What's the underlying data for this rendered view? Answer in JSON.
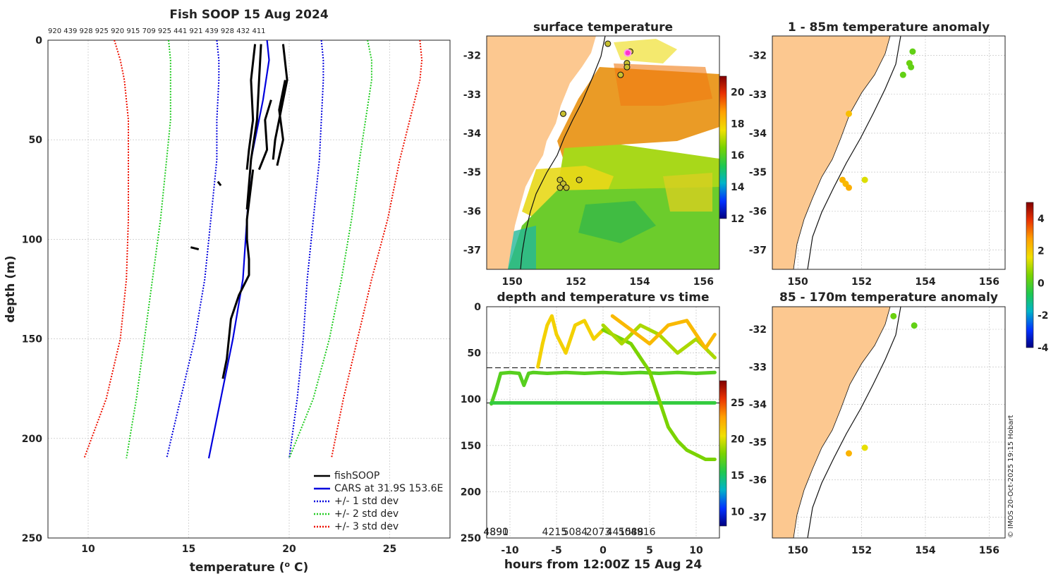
{
  "chart_data": [
    {
      "type": "line",
      "title": "Fish SOOP 15 Aug 2024",
      "xlabel": "temperature (",
      "xlabel_sup": "o",
      "xlabel_unit": " C)",
      "ylabel": "depth (m)",
      "xlim": [
        8,
        28
      ],
      "ylim": [
        250,
        0
      ],
      "xticks": [
        10,
        15,
        20,
        25
      ],
      "yticks": [
        0,
        50,
        100,
        150,
        200,
        250
      ],
      "top_labels": "920 439 928 925 920 915 709 925 441 921 439 928 432 411",
      "legend": [
        {
          "name": "fishSOOP",
          "color": "#000000",
          "dash": false
        },
        {
          "name": "CARS at 31.9S 153.6E",
          "color": "#0000dd",
          "dash": false
        },
        {
          "name": "+/- 1 std dev",
          "color": "#0000dd",
          "dash": true
        },
        {
          "name": "+/- 2 std dev",
          "color": "#22cc22",
          "dash": true
        },
        {
          "name": "+/- 3 std dev",
          "color": "#ee1100",
          "dash": true
        }
      ],
      "series": [
        {
          "name": "CARS",
          "depth": [
            0,
            10,
            30,
            60,
            90,
            120,
            150,
            175,
            210
          ],
          "temp": [
            18.9,
            19.0,
            18.7,
            18.1,
            17.9,
            17.7,
            17.2,
            16.7,
            16.0
          ]
        },
        {
          "name": "+1sd",
          "depth": [
            0,
            10,
            20,
            40,
            60,
            90,
            120,
            150,
            180,
            210
          ],
          "temp": [
            21.6,
            21.7,
            21.7,
            21.6,
            21.5,
            21.2,
            20.9,
            20.7,
            20.4,
            20.0
          ]
        },
        {
          "name": "-1sd",
          "depth": [
            0,
            10,
            20,
            40,
            60,
            90,
            120,
            150,
            180,
            210
          ],
          "temp": [
            16.4,
            16.5,
            16.5,
            16.4,
            16.4,
            16.1,
            15.8,
            15.3,
            14.6,
            13.9
          ]
        },
        {
          "name": "+2sd",
          "depth": [
            0,
            10,
            20,
            40,
            60,
            90,
            120,
            150,
            180,
            210
          ],
          "temp": [
            23.9,
            24.1,
            24.1,
            23.8,
            23.5,
            23.1,
            22.6,
            22.0,
            21.2,
            20.0
          ]
        },
        {
          "name": "-2sd",
          "depth": [
            0,
            10,
            20,
            40,
            60,
            90,
            120,
            150,
            180,
            210
          ],
          "temp": [
            14.0,
            14.1,
            14.1,
            14.1,
            13.9,
            13.6,
            13.2,
            12.8,
            12.4,
            11.9
          ]
        },
        {
          "name": "+3sd",
          "depth": [
            0,
            10,
            20,
            40,
            60,
            90,
            120,
            150,
            180,
            210
          ],
          "temp": [
            26.5,
            26.6,
            26.5,
            26.0,
            25.5,
            24.9,
            24.1,
            23.4,
            22.7,
            22.1
          ]
        },
        {
          "name": "-3sd",
          "depth": [
            0,
            10,
            20,
            40,
            60,
            90,
            120,
            150,
            180,
            210
          ],
          "temp": [
            11.3,
            11.6,
            11.8,
            12.0,
            12.0,
            12.0,
            11.9,
            11.6,
            10.9,
            9.8
          ]
        },
        {
          "name": "fishSOOP-1",
          "depth": [
            2,
            20,
            40,
            55,
            65
          ],
          "temp": [
            18.3,
            18.1,
            18.2,
            18.0,
            17.9
          ]
        },
        {
          "name": "fishSOOP-2",
          "depth": [
            2,
            20,
            40,
            60,
            85
          ],
          "temp": [
            18.6,
            18.5,
            18.4,
            18.1,
            17.9
          ]
        },
        {
          "name": "fishSOOP-3",
          "depth": [
            2,
            20,
            35,
            50,
            60
          ],
          "temp": [
            19.7,
            19.9,
            19.6,
            19.3,
            19.2
          ]
        },
        {
          "name": "fishSOOP-4",
          "depth": [
            20,
            35,
            50,
            63
          ],
          "temp": [
            19.8,
            19.5,
            19.7,
            19.4
          ]
        },
        {
          "name": "fishSOOP-5",
          "depth": [
            30,
            40,
            55,
            65
          ],
          "temp": [
            19.1,
            18.8,
            18.9,
            18.5
          ]
        },
        {
          "name": "fishSOOP-deep",
          "depth": [
            65,
            90,
            100,
            110,
            118,
            128,
            140,
            150,
            160,
            170
          ],
          "temp": [
            18.2,
            17.9,
            17.9,
            18.0,
            18.0,
            17.5,
            17.1,
            17.0,
            16.9,
            16.7
          ]
        }
      ],
      "fragments": [
        {
          "depth": [
            71,
            73
          ],
          "temp": [
            16.45,
            16.6
          ]
        },
        {
          "depth": [
            104,
            105
          ],
          "temp": [
            15.1,
            15.5
          ]
        }
      ]
    },
    {
      "type": "heatmap",
      "title": "surface temperature",
      "xlim": [
        149.2,
        156.5
      ],
      "ylim": [
        -37.5,
        -31.5
      ],
      "xticks": [
        150,
        152,
        154,
        156
      ],
      "yticks": [
        -32,
        -33,
        -34,
        -35,
        -36,
        -37
      ],
      "colorbar": {
        "min": 12,
        "max": 21,
        "ticks": [
          12,
          14,
          16,
          18,
          20
        ]
      },
      "profile_points": [
        {
          "lon": 153.0,
          "lat": -31.7
        },
        {
          "lon": 153.7,
          "lat": -31.9
        },
        {
          "lon": 153.6,
          "lat": -32.2
        },
        {
          "lon": 153.6,
          "lat": -32.3
        },
        {
          "lon": 153.4,
          "lat": -32.5
        },
        {
          "lon": 151.6,
          "lat": -33.5
        },
        {
          "lon": 151.5,
          "lat": -35.2
        },
        {
          "lon": 151.6,
          "lat": -35.3
        },
        {
          "lon": 151.5,
          "lat": -35.4
        },
        {
          "lon": 151.7,
          "lat": -35.4
        },
        {
          "lon": 152.1,
          "lat": -35.2
        }
      ]
    },
    {
      "type": "line",
      "title": "depth and temperature vs time",
      "xlabel": "hours from 12:00Z 15 Aug 24",
      "xlim": [
        -12.5,
        12.5
      ],
      "ylim": [
        250,
        0
      ],
      "xticks": [
        -10,
        -5,
        0,
        5,
        10
      ],
      "yticks": [
        0,
        50,
        100,
        150,
        200,
        250
      ],
      "dashed_depths": [
        66,
        104
      ],
      "colorbar": {
        "min": 8,
        "max": 28,
        "ticks": [
          10,
          15,
          20,
          25
        ]
      },
      "bottom_labels": [
        {
          "hour": -11.5,
          "text": "4890"
        },
        {
          "hour": -11.5,
          "text": "4891"
        },
        {
          "hour": -5.2,
          "text": "4215"
        },
        {
          "hour": -3.0,
          "text": "5084"
        },
        {
          "hour": -0.5,
          "text": "2073"
        },
        {
          "hour": 1.7,
          "text": "4415"
        },
        {
          "hour": 3.0,
          "text": "5088"
        },
        {
          "hour": 4.3,
          "text": "4916"
        }
      ],
      "series": [
        {
          "name": "tow-a",
          "temp": 17,
          "t": [
            -12,
            -11.5,
            -11,
            -10,
            -9,
            -8.5,
            -8,
            -7.5,
            -6,
            -4,
            -2,
            0,
            2,
            4,
            6,
            8,
            10,
            12
          ],
          "depth": [
            105,
            90,
            72,
            71,
            72,
            85,
            72,
            71,
            72,
            71,
            72,
            71,
            72,
            71,
            72,
            71,
            72,
            71
          ]
        },
        {
          "name": "tow-b",
          "temp": 16,
          "t": [
            -12,
            -8,
            -4,
            0,
            4,
            8,
            12
          ],
          "depth": [
            104,
            104,
            104,
            104,
            104,
            104,
            104
          ]
        },
        {
          "name": "tow-c",
          "temp": 21,
          "t": [
            -7,
            -6.5,
            -6,
            -5.5,
            -5,
            -4,
            -3,
            -2,
            -1,
            0
          ],
          "depth": [
            65,
            40,
            20,
            10,
            30,
            50,
            20,
            15,
            35,
            25
          ]
        },
        {
          "name": "tow-d",
          "temp": 18,
          "t": [
            0,
            1,
            2,
            3,
            4,
            5,
            6,
            7,
            8,
            9,
            10,
            11,
            12
          ],
          "depth": [
            25,
            30,
            35,
            40,
            55,
            70,
            100,
            130,
            145,
            155,
            160,
            165,
            165
          ]
        },
        {
          "name": "tow-e",
          "temp": 19,
          "t": [
            0,
            2,
            4,
            6,
            8,
            10,
            12
          ],
          "depth": [
            20,
            40,
            20,
            30,
            50,
            35,
            55
          ]
        },
        {
          "name": "tow-f",
          "temp": 22,
          "t": [
            1,
            3,
            5,
            7,
            9,
            11,
            12
          ],
          "depth": [
            10,
            25,
            40,
            20,
            15,
            45,
            30
          ]
        }
      ]
    },
    {
      "type": "scatter",
      "title": "1 - 85m temperature anomaly",
      "xticks": [
        150,
        152,
        154,
        156
      ],
      "yticks": [
        -32,
        -33,
        -34,
        -35,
        -36,
        -37
      ],
      "points": [
        {
          "lon": 153.6,
          "lat": -31.9,
          "anom": 0.2
        },
        {
          "lon": 153.5,
          "lat": -32.2,
          "anom": 0.3
        },
        {
          "lon": 153.55,
          "lat": -32.3,
          "anom": 0.2
        },
        {
          "lon": 153.3,
          "lat": -32.5,
          "anom": 0.2
        },
        {
          "lon": 151.6,
          "lat": -33.5,
          "anom": 2.2
        },
        {
          "lon": 151.4,
          "lat": -35.2,
          "anom": 2.4
        },
        {
          "lon": 151.5,
          "lat": -35.3,
          "anom": 2.3
        },
        {
          "lon": 151.6,
          "lat": -35.4,
          "anom": 2.5
        },
        {
          "lon": 152.1,
          "lat": -35.2,
          "anom": 1.4
        }
      ]
    },
    {
      "type": "scatter",
      "title": "85 - 170m temperature anomaly",
      "xticks": [
        150,
        152,
        154,
        156
      ],
      "yticks": [
        -32,
        -33,
        -34,
        -35,
        -36,
        -37
      ],
      "colorbar": {
        "min": -4,
        "max": 5,
        "ticks": [
          -4,
          -2,
          0,
          2,
          4
        ]
      },
      "points": [
        {
          "lon": 153.0,
          "lat": -31.65,
          "anom": 0.3
        },
        {
          "lon": 153.65,
          "lat": -31.9,
          "anom": 0.2
        },
        {
          "lon": 151.6,
          "lat": -35.3,
          "anom": 2.4
        },
        {
          "lon": 152.1,
          "lat": -35.15,
          "anom": 1.5
        }
      ]
    }
  ],
  "footer": {
    "credit": "© IMOS 20-Oct-2025 19:15 Hobart"
  }
}
